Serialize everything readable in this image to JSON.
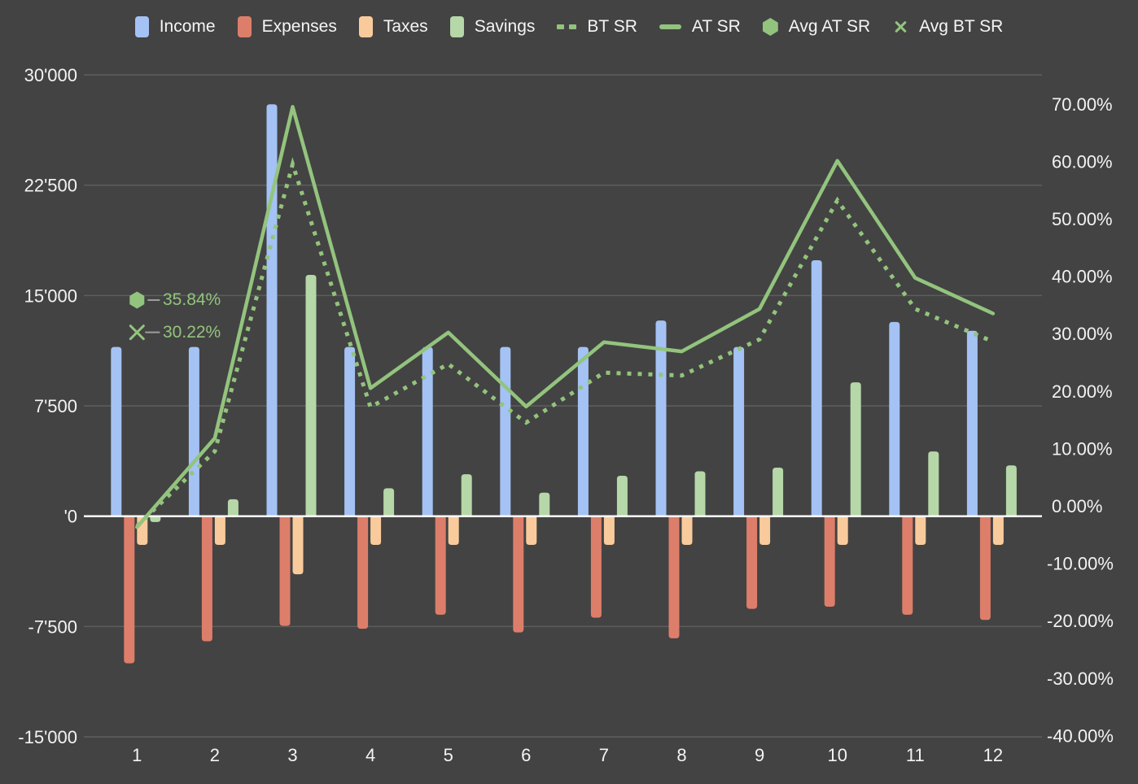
{
  "colors": {
    "background": "#434343",
    "gridline": "#5d5d5d",
    "zero_line": "#ffffff",
    "axis_text": "#f3f3f3",
    "legend_text": "#f5f5f5",
    "income": "#a4c2f4",
    "expenses": "#dd7e6b",
    "taxes": "#f9cb9c",
    "savings": "#b6d7a8",
    "line_green": "#93c47d",
    "annotation_text": "#93c47d",
    "leader_line": "#9e9e9e"
  },
  "legend": {
    "items": [
      {
        "label": "Income",
        "swatch": "bar",
        "color_key": "income"
      },
      {
        "label": "Expenses",
        "swatch": "bar",
        "color_key": "expenses"
      },
      {
        "label": "Taxes",
        "swatch": "bar",
        "color_key": "taxes"
      },
      {
        "label": "Savings",
        "swatch": "bar",
        "color_key": "savings"
      },
      {
        "label": "BT SR",
        "swatch": "dotted-line",
        "color_key": "line_green"
      },
      {
        "label": "AT SR",
        "swatch": "solid-line",
        "color_key": "line_green"
      },
      {
        "label": "Avg AT SR",
        "swatch": "hexagon",
        "color_key": "line_green"
      },
      {
        "label": "Avg BT SR",
        "swatch": "x-cross",
        "color_key": "line_green"
      }
    ]
  },
  "annotations": {
    "avg_at_sr": {
      "label": "35.84%",
      "value": 35.84,
      "marker": "hexagon"
    },
    "avg_bt_sr": {
      "label": "30.22%",
      "value": 30.22,
      "marker": "x-cross"
    }
  },
  "chart_data": {
    "type": "bar",
    "subtype": "combo-bars-and-lines-dual-axis",
    "title": "",
    "categories": [
      "1",
      "2",
      "3",
      "4",
      "5",
      "6",
      "7",
      "8",
      "9",
      "10",
      "11",
      "12"
    ],
    "series": [
      {
        "name": "Income",
        "type": "bar",
        "axis": "left",
        "color_key": "income",
        "values": [
          11500,
          11500,
          28000,
          11500,
          11500,
          11500,
          11500,
          13300,
          11500,
          17400,
          13200,
          12600
        ]
      },
      {
        "name": "Expenses",
        "type": "bar",
        "axis": "left",
        "color_key": "expenses",
        "values": [
          -10000,
          -8500,
          -7450,
          -7650,
          -6700,
          -7900,
          -6900,
          -8300,
          -6300,
          -6150,
          -6700,
          -7050
        ]
      },
      {
        "name": "Taxes",
        "type": "bar",
        "axis": "left",
        "color_key": "taxes",
        "values": [
          -1950,
          -1950,
          -3950,
          -1950,
          -1950,
          -1950,
          -1950,
          -1950,
          -1950,
          -1950,
          -1950,
          -1950
        ]
      },
      {
        "name": "Savings",
        "type": "bar",
        "axis": "left",
        "color_key": "savings",
        "values": [
          -400,
          1150,
          16400,
          1900,
          2850,
          1600,
          2750,
          3050,
          3300,
          9100,
          4400,
          3450
        ]
      },
      {
        "name": "BT SR",
        "type": "line-dotted",
        "axis": "right",
        "color_key": "line_green",
        "values": [
          -3.5,
          9.5,
          59.5,
          17.2,
          24.7,
          14.5,
          23.2,
          22.7,
          29.0,
          53.2,
          34.3,
          28.6
        ]
      },
      {
        "name": "AT SR",
        "type": "line",
        "axis": "right",
        "color_key": "line_green",
        "values": [
          -3.7,
          11.8,
          69.5,
          20.5,
          30.2,
          17.3,
          28.5,
          26.9,
          34.3,
          60.1,
          39.7,
          33.5
        ]
      },
      {
        "name": "Avg AT SR",
        "type": "point",
        "axis": "right",
        "color_key": "line_green",
        "marker": "hexagon",
        "at_category": "1",
        "value": 35.84,
        "data_label": "35.84%"
      },
      {
        "name": "Avg BT SR",
        "type": "point",
        "axis": "right",
        "color_key": "line_green",
        "marker": "x-cross",
        "at_category": "1",
        "value": 30.22,
        "data_label": "30.22%"
      }
    ],
    "left_axis": {
      "min": -15000,
      "max": 30000,
      "tick_step": 7500,
      "tick_values": [
        30000,
        22500,
        15000,
        7500,
        0,
        -7500,
        -15000
      ],
      "tick_labels": [
        "30'000",
        "22'500",
        "15'000",
        "7'500",
        "'0",
        "-7'500",
        "-15'000"
      ]
    },
    "right_axis": {
      "min": -40,
      "max": 70,
      "tick_step": 10,
      "tick_values": [
        70,
        60,
        50,
        40,
        30,
        20,
        10,
        0,
        -10,
        -20,
        -30,
        -40
      ],
      "tick_labels": [
        "70.00%",
        "60.00%",
        "50.00%",
        "40.00%",
        "30.00%",
        "20.00%",
        "10.00%",
        "0.00%",
        "-10.00%",
        "-20.00%",
        "-30.00%",
        "-40.00%"
      ]
    },
    "grid": true,
    "legend_position": "top"
  }
}
